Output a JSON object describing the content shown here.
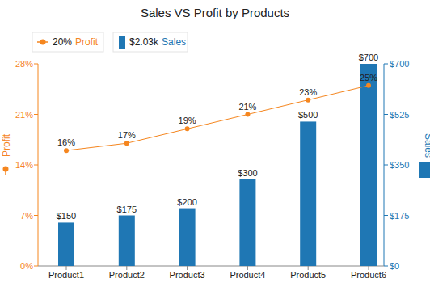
{
  "chart_data": {
    "type": "bar",
    "title": "Sales VS Profit by Products",
    "categories": [
      "Product1",
      "Product2",
      "Product3",
      "Product4",
      "Product5",
      "Product6"
    ],
    "y_label": "Profit",
    "y2_label": "Sales",
    "ylim": [
      0,
      28
    ],
    "yticks": [
      {
        "value": 0,
        "label": "0%"
      },
      {
        "value": 7,
        "label": "7%"
      },
      {
        "value": 14,
        "label": "14%"
      },
      {
        "value": 21,
        "label": "21%"
      },
      {
        "value": 28,
        "label": "28%"
      }
    ],
    "y2lim": [
      0,
      700
    ],
    "y2ticks": [
      {
        "value": 0,
        "label": "$0"
      },
      {
        "value": 175,
        "label": "$175"
      },
      {
        "value": 350,
        "label": "$350"
      },
      {
        "value": 525,
        "label": "$525"
      },
      {
        "value": 700,
        "label": "$700"
      }
    ],
    "grid": false,
    "data_labels": true,
    "legend": "top",
    "series": [
      {
        "name": "Profit",
        "type": "line",
        "color": "#f5861f",
        "marker": "circle",
        "summary": "20%",
        "values": [
          16,
          17,
          19,
          21,
          23,
          25
        ],
        "value_labels": [
          "16%",
          "17%",
          "19%",
          "21%",
          "23%",
          "25%"
        ]
      },
      {
        "name": "Sales",
        "type": "bar",
        "axis": "y2",
        "color": "#1f77b4",
        "summary": "$2.03k",
        "values": [
          150,
          175,
          200,
          300,
          500,
          700
        ],
        "value_labels": [
          "$150",
          "$175",
          "$200",
          "$300",
          "$500",
          "$700"
        ]
      }
    ]
  }
}
